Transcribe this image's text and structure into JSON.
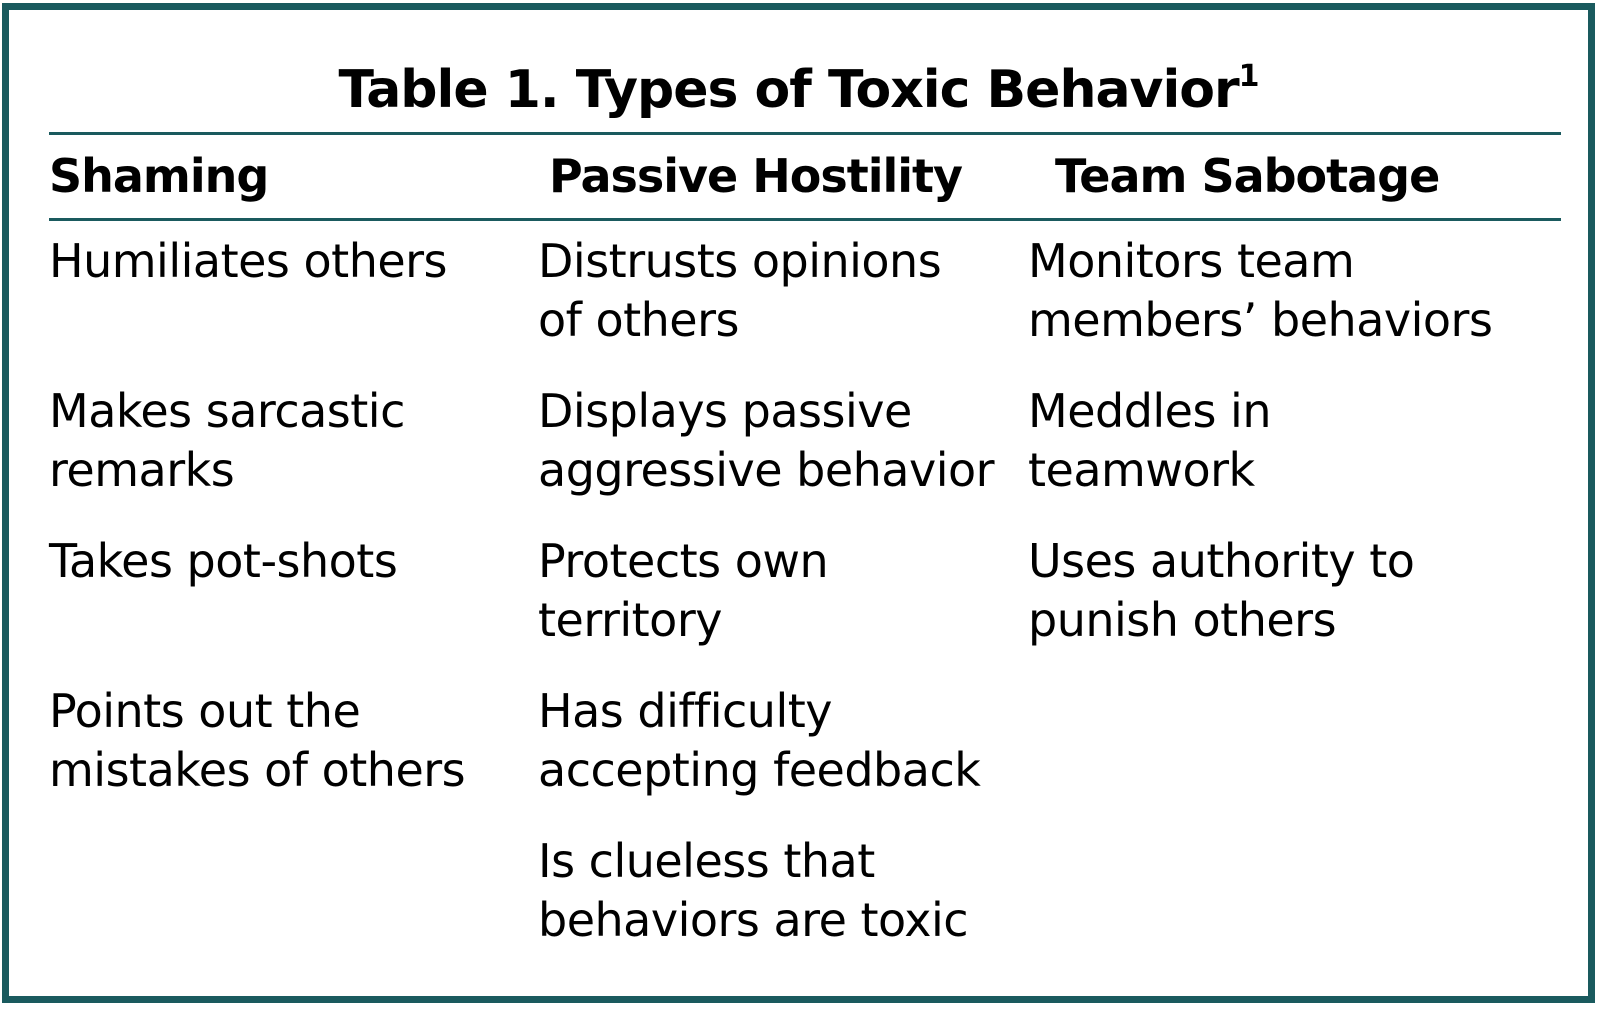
{
  "table": {
    "title": "Table 1. Types of Toxic Behavior",
    "title_superscript": "1",
    "accent_color": "#1a5a5e",
    "columns": [
      {
        "header": "Shaming",
        "items": [
          "Humiliates others",
          "Makes sarcastic\nremarks",
          "Takes pot-shots",
          "Points out the\nmistakes of others"
        ]
      },
      {
        "header": "Passive Hostility",
        "items": [
          "Distrusts opinions\nof others",
          "Displays passive\naggressive behavior",
          "Protects own\nterritory",
          "Has difficulty\naccepting feedback",
          "Is clueless that\nbehaviors are toxic"
        ]
      },
      {
        "header": "Team Sabotage",
        "items": [
          "Monitors team\nmembers’ behaviors",
          "Meddles in\nteamwork",
          "Uses authority to\npunish others"
        ]
      }
    ]
  }
}
